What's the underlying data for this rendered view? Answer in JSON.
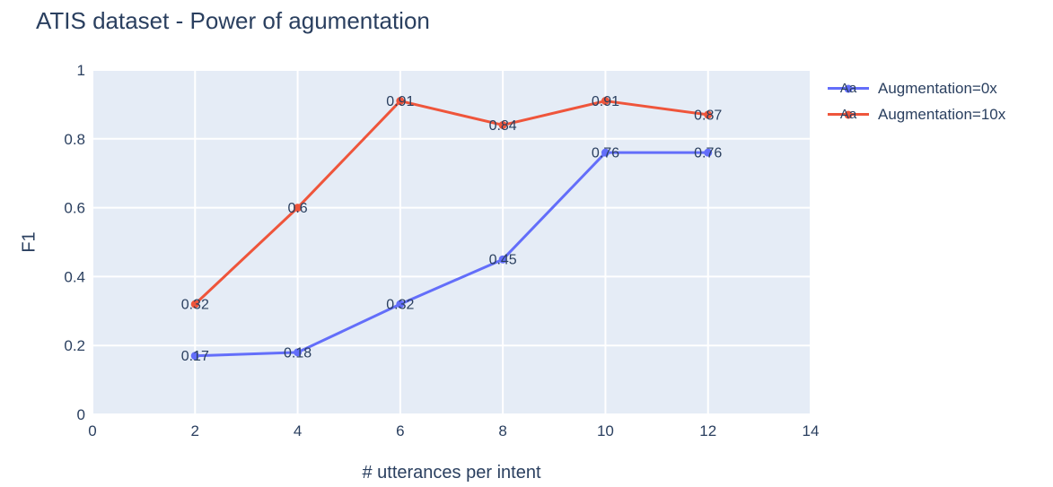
{
  "colors": {
    "text": "#2a3f5f",
    "plot_background": "#E5ECF6",
    "gridline": "#FFFFFF",
    "paper_background": "#FFFFFF",
    "series_blue": "#636EFA",
    "series_red": "#EF553B"
  },
  "legend_symbol": "Aa",
  "chart_data": {
    "type": "line",
    "title": "ATIS dataset - Power of agumentation",
    "xlabel": "# utterances per intent",
    "ylabel": "F1",
    "xlim": [
      0,
      14
    ],
    "ylim": [
      0,
      1
    ],
    "grid": true,
    "legend_position": "top-right",
    "x_ticks": [
      0,
      2,
      4,
      6,
      8,
      10,
      12,
      14
    ],
    "x_tick_labels": [
      "0",
      "2",
      "4",
      "6",
      "8",
      "10",
      "12",
      "14"
    ],
    "y_ticks": [
      0,
      0.2,
      0.4,
      0.6,
      0.8,
      1
    ],
    "y_tick_labels": [
      "0",
      "0.2",
      "0.4",
      "0.6",
      "0.8",
      "1"
    ],
    "x": [
      2,
      4,
      6,
      8,
      10,
      12
    ],
    "series": [
      {
        "name": "Augmentation=0x",
        "color": "#636EFA",
        "values": [
          0.17,
          0.18,
          0.32,
          0.45,
          0.76,
          0.76
        ],
        "labels": [
          "0.17",
          "0.18",
          "0.32",
          "0.45",
          "0.76",
          "0.76"
        ]
      },
      {
        "name": "Augmentation=10x",
        "color": "#EF553B",
        "values": [
          0.32,
          0.6,
          0.91,
          0.84,
          0.91,
          0.87
        ],
        "labels": [
          "0.32",
          "0.6",
          "0.91",
          "0.84",
          "0.91",
          "0.87"
        ]
      }
    ]
  }
}
